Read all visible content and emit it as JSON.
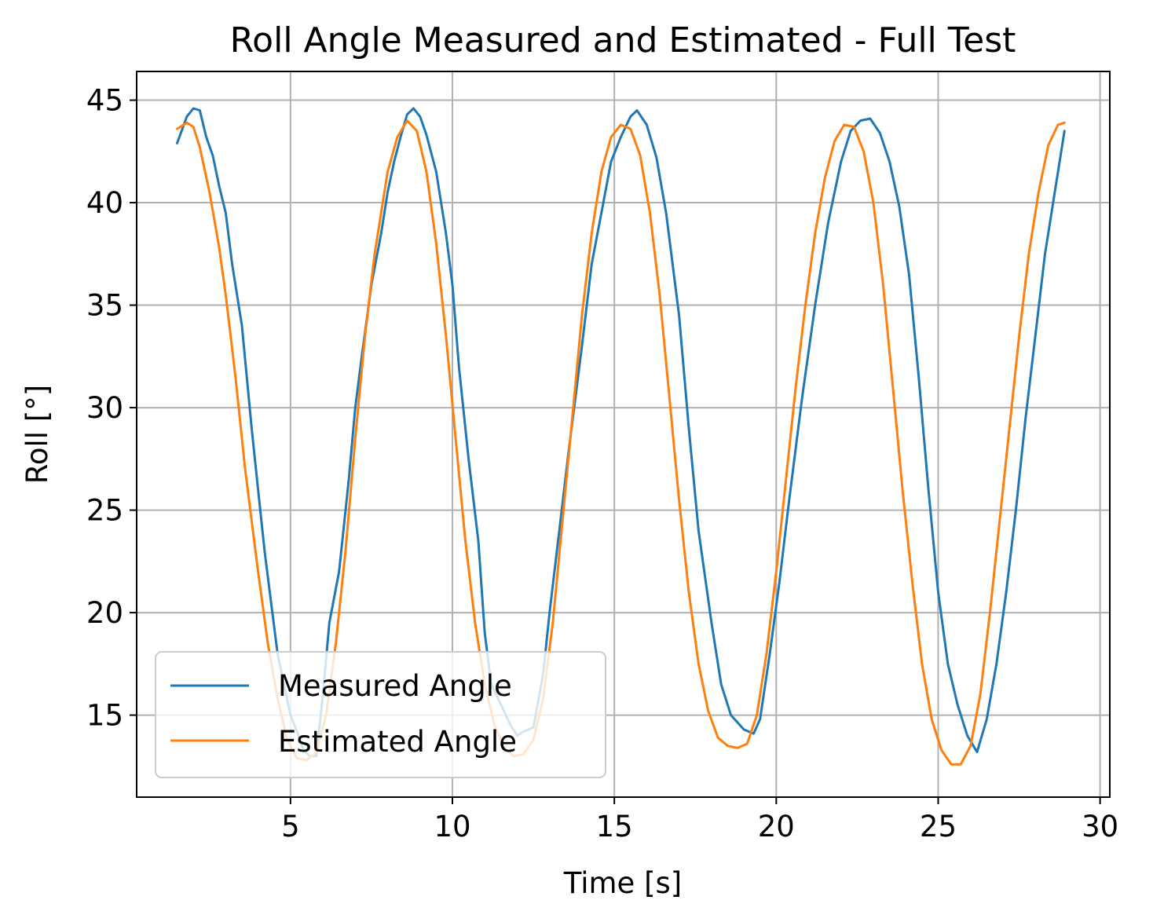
{
  "chart_data": {
    "type": "line",
    "title": "Roll Angle Measured and Estimated - Full Test",
    "xlabel": "Time [s]",
    "ylabel": "Roll [°]",
    "xlim": [
      0.25,
      30.3
    ],
    "ylim": [
      11.0,
      46.4
    ],
    "xticks": [
      5,
      10,
      15,
      20,
      25,
      30
    ],
    "yticks": [
      15,
      20,
      25,
      30,
      35,
      40,
      45
    ],
    "grid": true,
    "legend_position": "lower-left",
    "series": [
      {
        "name": "Measured Angle",
        "color": "#1f77b4",
        "x": [
          1.5,
          1.8,
          2.0,
          2.2,
          2.4,
          2.6,
          2.8,
          3.0,
          3.2,
          3.5,
          3.8,
          4.0,
          4.2,
          4.4,
          4.6,
          4.8,
          5.0,
          5.2,
          5.4,
          5.6,
          5.8,
          6.0,
          6.2,
          6.5,
          6.8,
          7.0,
          7.2,
          7.5,
          7.8,
          8.0,
          8.2,
          8.4,
          8.6,
          8.8,
          9.0,
          9.2,
          9.5,
          9.8,
          10.0,
          10.2,
          10.5,
          10.8,
          11.0,
          11.2,
          11.5,
          11.8,
          12.0,
          12.2,
          12.5,
          12.8,
          13.0,
          13.3,
          13.6,
          14.0,
          14.3,
          14.6,
          14.9,
          15.2,
          15.5,
          15.7,
          16.0,
          16.3,
          16.6,
          17.0,
          17.3,
          17.6,
          18.0,
          18.3,
          18.6,
          19.0,
          19.3,
          19.5,
          19.8,
          20.1,
          20.4,
          20.8,
          21.2,
          21.6,
          22.0,
          22.3,
          22.6,
          22.9,
          23.2,
          23.5,
          23.8,
          24.1,
          24.4,
          24.7,
          25.0,
          25.3,
          25.6,
          25.9,
          26.2,
          26.5,
          26.8,
          27.1,
          27.4,
          27.7,
          28.0,
          28.3,
          28.6,
          28.9
        ],
        "y": [
          42.9,
          44.2,
          44.6,
          44.5,
          43.2,
          42.3,
          40.8,
          39.5,
          37.0,
          34.0,
          29.0,
          26.0,
          23.0,
          20.5,
          18.0,
          16.5,
          15.0,
          14.2,
          13.3,
          13.0,
          13.0,
          16.0,
          19.5,
          22.0,
          26.5,
          30.0,
          32.5,
          36.0,
          38.5,
          40.5,
          42.0,
          43.2,
          44.3,
          44.6,
          44.2,
          43.3,
          41.5,
          38.5,
          36.0,
          32.0,
          27.5,
          23.5,
          19.0,
          16.5,
          15.5,
          14.5,
          14.0,
          14.2,
          14.4,
          17.0,
          20.0,
          24.0,
          28.0,
          33.0,
          37.0,
          39.5,
          42.0,
          43.2,
          44.2,
          44.5,
          43.8,
          42.2,
          39.5,
          34.5,
          29.0,
          24.0,
          19.5,
          16.5,
          15.0,
          14.3,
          14.1,
          14.8,
          18.0,
          21.5,
          25.5,
          30.5,
          35.0,
          39.0,
          42.0,
          43.5,
          44.0,
          44.1,
          43.4,
          42.0,
          39.8,
          36.5,
          31.5,
          26.0,
          21.0,
          17.5,
          15.5,
          14.0,
          13.2,
          14.8,
          17.5,
          21.0,
          25.0,
          29.5,
          33.5,
          37.5,
          40.5,
          43.5
        ]
      },
      {
        "name": "Estimated Angle",
        "color": "#ff7f0e",
        "x": [
          1.5,
          1.8,
          2.0,
          2.2,
          2.5,
          2.8,
          3.0,
          3.3,
          3.6,
          4.0,
          4.3,
          4.6,
          4.9,
          5.2,
          5.5,
          5.8,
          6.1,
          6.4,
          6.7,
          7.0,
          7.3,
          7.6,
          8.0,
          8.3,
          8.6,
          8.9,
          9.2,
          9.5,
          9.8,
          10.1,
          10.4,
          10.7,
          11.0,
          11.3,
          11.6,
          11.9,
          12.2,
          12.5,
          12.8,
          13.1,
          13.4,
          13.7,
          14.0,
          14.3,
          14.6,
          14.9,
          15.2,
          15.5,
          15.8,
          16.1,
          16.4,
          16.7,
          17.0,
          17.3,
          17.6,
          17.9,
          18.2,
          18.5,
          18.8,
          19.1,
          19.4,
          19.7,
          20.0,
          20.3,
          20.6,
          20.9,
          21.2,
          21.5,
          21.8,
          22.1,
          22.4,
          22.7,
          23.0,
          23.3,
          23.6,
          23.9,
          24.2,
          24.5,
          24.8,
          25.1,
          25.4,
          25.7,
          26.0,
          26.3,
          26.6,
          26.9,
          27.2,
          27.5,
          27.8,
          28.1,
          28.4,
          28.7,
          28.9
        ],
        "y": [
          43.6,
          43.9,
          43.7,
          42.7,
          40.5,
          37.8,
          35.5,
          31.5,
          27.0,
          22.0,
          18.5,
          15.8,
          13.8,
          12.9,
          12.8,
          13.2,
          15.0,
          18.5,
          23.0,
          28.5,
          33.5,
          37.5,
          41.5,
          43.2,
          44.0,
          43.5,
          41.5,
          38.0,
          33.5,
          28.5,
          23.5,
          19.5,
          16.5,
          14.5,
          13.4,
          13.0,
          13.1,
          13.8,
          15.8,
          19.5,
          24.5,
          29.5,
          34.5,
          38.5,
          41.5,
          43.2,
          43.8,
          43.6,
          42.3,
          39.5,
          35.5,
          30.5,
          25.5,
          21.0,
          17.5,
          15.2,
          13.9,
          13.5,
          13.4,
          13.6,
          15.0,
          18.0,
          22.0,
          26.5,
          31.0,
          35.0,
          38.5,
          41.2,
          43.0,
          43.8,
          43.7,
          42.5,
          40.0,
          36.0,
          31.0,
          26.0,
          21.5,
          17.5,
          14.8,
          13.3,
          12.6,
          12.6,
          13.5,
          16.0,
          20.0,
          24.5,
          29.0,
          33.5,
          37.5,
          40.5,
          42.8,
          43.8,
          43.9
        ]
      }
    ]
  }
}
